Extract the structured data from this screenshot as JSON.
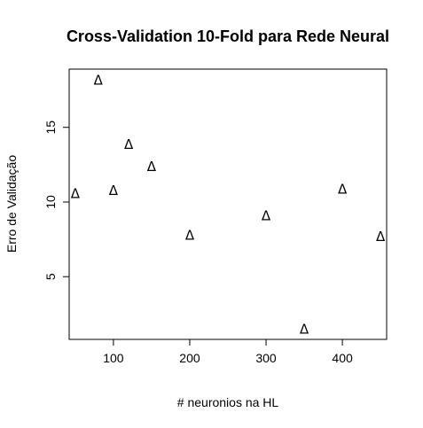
{
  "chart_data": {
    "type": "scatter",
    "title": "Cross-Validation 10-Fold para Rede Neural",
    "xlabel": "# neuronios na HL",
    "ylabel": "Erro de Validação",
    "marker": "Δ",
    "x": [
      50,
      80,
      100,
      120,
      150,
      200,
      300,
      350,
      400,
      450
    ],
    "y": [
      10.6,
      18.2,
      10.8,
      13.9,
      12.4,
      7.8,
      9.1,
      1.5,
      10.9,
      7.7
    ],
    "xlim": [
      42,
      458
    ],
    "ylim": [
      0.8,
      18.9
    ],
    "xticks": [
      100,
      200,
      300,
      400
    ],
    "yticks": [
      5,
      10,
      15
    ],
    "xtick_labels": [
      "100",
      "200",
      "300",
      "400"
    ],
    "ytick_labels": [
      "5",
      "10",
      "15"
    ],
    "grid": false,
    "colors": {
      "marker": "#000000",
      "axes": "#000000",
      "background": "#ffffff"
    }
  }
}
